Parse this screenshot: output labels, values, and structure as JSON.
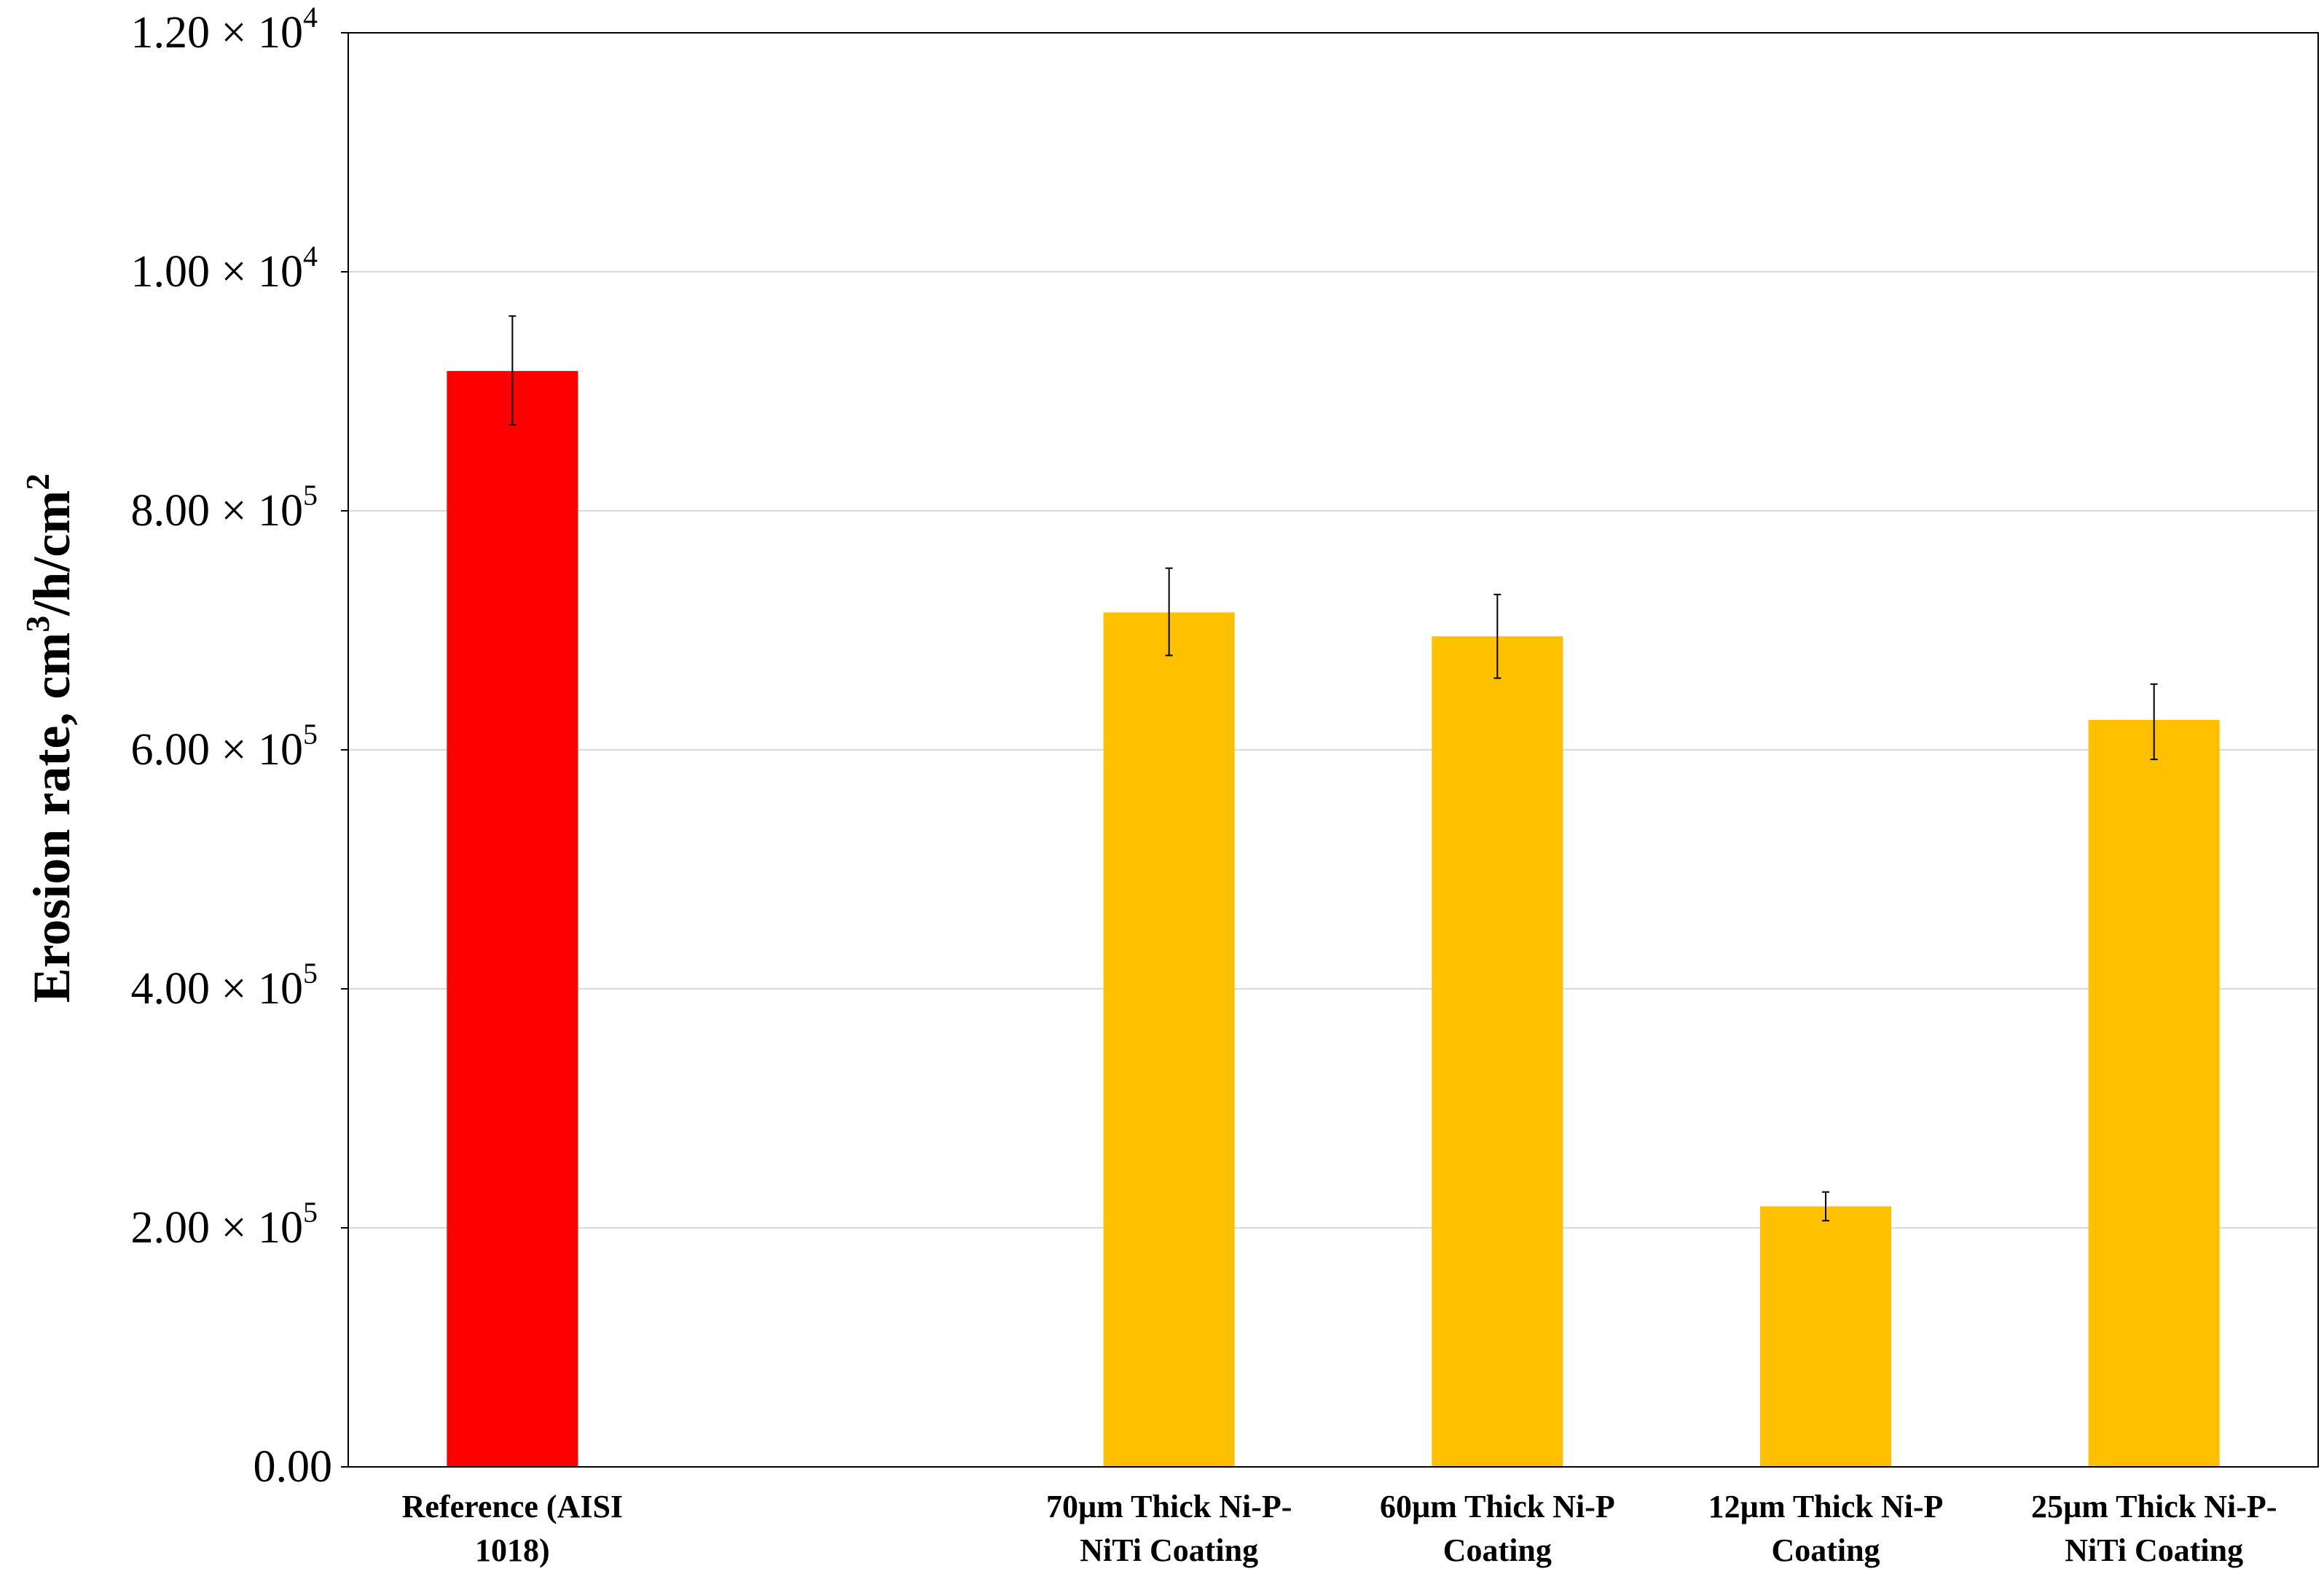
{
  "chart_data": {
    "type": "bar",
    "title": "",
    "xlabel": "",
    "ylabel": {
      "main": "Erosion rate, cm",
      "sup1": "3",
      "mid": "/h/cm",
      "sup2": "2"
    },
    "ylim": [
      0,
      12
    ],
    "yticks": [
      {
        "value": 0,
        "mantissa": "0.00",
        "exp": ""
      },
      {
        "value": 2,
        "mantissa": "2.00 × 10",
        "exp": "5"
      },
      {
        "value": 4,
        "mantissa": "4.00 × 10",
        "exp": "5"
      },
      {
        "value": 6,
        "mantissa": "6.00 × 10",
        "exp": "5"
      },
      {
        "value": 8,
        "mantissa": "8.00 × 10",
        "exp": "5"
      },
      {
        "value": 10,
        "mantissa": "1.00 × 10",
        "exp": "4"
      },
      {
        "value": 12,
        "mantissa": "1.20 × 10",
        "exp": "4"
      }
    ],
    "grid": true,
    "slots": 6,
    "categories": [
      {
        "label_lines": [
          "Reference (AISI",
          "1018)"
        ],
        "slot": 0,
        "value": 9.17,
        "err_high": 9.63,
        "err_low": 8.72,
        "color": "#ff0000"
      },
      {
        "label_lines": [
          "70µm Thick Ni-P-",
          "NiTi Coating"
        ],
        "slot": 2,
        "value": 7.15,
        "err_high": 7.52,
        "err_low": 6.79,
        "color": "#ffc000"
      },
      {
        "label_lines": [
          "60µm Thick Ni-P",
          "Coating"
        ],
        "slot": 3,
        "value": 6.95,
        "err_high": 7.3,
        "err_low": 6.6,
        "color": "#ffc000"
      },
      {
        "label_lines": [
          "12µm Thick Ni-P",
          "Coating"
        ],
        "slot": 4,
        "value": 2.18,
        "err_high": 2.3,
        "err_low": 2.06,
        "color": "#ffc000"
      },
      {
        "label_lines": [
          "25µm Thick Ni-P-",
          "NiTi Coating"
        ],
        "slot": 5,
        "value": 6.25,
        "err_high": 6.55,
        "err_low": 5.92,
        "color": "#ffc000"
      }
    ]
  }
}
